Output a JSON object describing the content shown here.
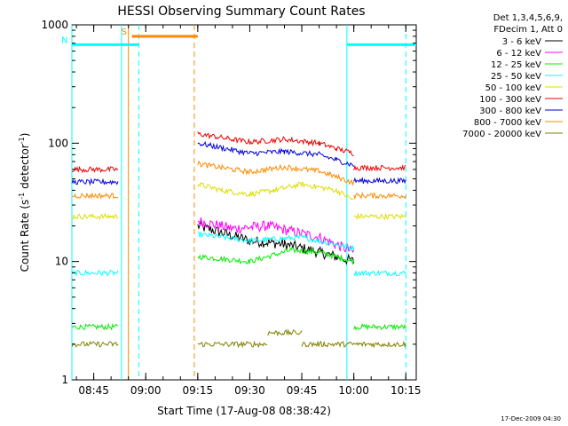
{
  "chart_data": {
    "type": "line",
    "title": "HESSI Observing Summary Count Rates",
    "xlabel": "Start Time (17-Aug-08 08:38:42)",
    "ylabel_main": "Count Rate (s",
    "ylabel_sup1": "-1",
    "ylabel_mid": " detector",
    "ylabel_sup2": "-1",
    "ylabel_end": ")",
    "yscale": "log",
    "xlim": [
      "08:38:42",
      "10:18:00"
    ],
    "ylim": [
      1,
      1000
    ],
    "x_ticks": [
      "08:45",
      "09:00",
      "09:15",
      "09:30",
      "09:45",
      "10:00",
      "10:15"
    ],
    "y_ticks": [
      "1",
      "10",
      "100",
      "1000"
    ],
    "legend_header": [
      "Det 1,3,4,5,6,9,",
      "FDecim 1, Att 0"
    ],
    "legend_placement": "right, outside plot",
    "series": [
      {
        "name": "3 - 6 keV",
        "color": "#000000",
        "segments": [
          {
            "x": [
              "09:15",
              "09:30",
              "09:40",
              "09:50",
              "10:00"
            ],
            "y": [
              20,
              15,
              14,
              12,
              10
            ]
          }
        ]
      },
      {
        "name": "6 - 12 keV",
        "color": "#ff00ff",
        "segments": [
          {
            "x": [
              "09:15",
              "09:25",
              "09:35",
              "09:50",
              "10:00"
            ],
            "y": [
              22,
              19,
              20,
              16,
              12
            ]
          }
        ]
      },
      {
        "name": "12 - 25 keV",
        "color": "#00ee00",
        "segments": [
          {
            "x": [
              "08:38:42",
              "08:52"
            ],
            "y": [
              2.8,
              2.8
            ]
          },
          {
            "x": [
              "09:15",
              "09:30",
              "09:42",
              "09:50",
              "10:00"
            ],
            "y": [
              11,
              10,
              12.5,
              12,
              10
            ]
          },
          {
            "x": [
              "10:00",
              "10:15"
            ],
            "y": [
              2.8,
              2.8
            ]
          }
        ]
      },
      {
        "name": "25 - 50 keV",
        "color": "#00ffff",
        "segments": [
          {
            "x": [
              "08:38:42",
              "08:52"
            ],
            "y": [
              8,
              8
            ]
          },
          {
            "x": [
              "09:15",
              "09:30",
              "09:45",
              "10:00"
            ],
            "y": [
              17,
              15,
              16,
              13
            ]
          },
          {
            "x": [
              "10:00",
              "10:15"
            ],
            "y": [
              8,
              8
            ]
          }
        ]
      },
      {
        "name": "50 - 100 keV",
        "color": "#dddd00",
        "segments": [
          {
            "x": [
              "08:38:42",
              "08:52"
            ],
            "y": [
              24,
              24
            ]
          },
          {
            "x": [
              "09:15",
              "09:22",
              "09:30",
              "09:37",
              "09:45",
              "09:55",
              "10:00"
            ],
            "y": [
              45,
              40,
              37,
              40,
              45,
              40,
              33
            ]
          },
          {
            "x": [
              "10:00",
              "10:15"
            ],
            "y": [
              24,
              24
            ]
          }
        ]
      },
      {
        "name": "100 - 300 keV",
        "color": "#ee0000",
        "segments": [
          {
            "x": [
              "08:38:42",
              "08:52"
            ],
            "y": [
              60,
              60
            ]
          },
          {
            "x": [
              "09:15",
              "09:30",
              "09:40",
              "09:50",
              "09:55",
              "10:00"
            ],
            "y": [
              120,
              102,
              108,
              100,
              90,
              82
            ]
          },
          {
            "x": [
              "10:00",
              "10:15"
            ],
            "y": [
              62,
              62
            ]
          }
        ]
      },
      {
        "name": "300 - 800 keV",
        "color": "#0000dd",
        "segments": [
          {
            "x": [
              "08:38:42",
              "08:52"
            ],
            "y": [
              47,
              47
            ]
          },
          {
            "x": [
              "09:15",
              "09:30",
              "09:40",
              "09:50",
              "09:55",
              "10:00"
            ],
            "y": [
              100,
              82,
              85,
              80,
              72,
              65
            ]
          },
          {
            "x": [
              "10:00",
              "10:15"
            ],
            "y": [
              48,
              48
            ]
          }
        ]
      },
      {
        "name": "800 - 7000 keV",
        "color": "#ff8800",
        "segments": [
          {
            "x": [
              "08:38:42",
              "08:52"
            ],
            "y": [
              36,
              36
            ]
          },
          {
            "x": [
              "09:15",
              "09:30",
              "09:40",
              "09:50",
              "09:55",
              "10:00"
            ],
            "y": [
              67,
              57,
              63,
              58,
              52,
              46
            ]
          },
          {
            "x": [
              "10:00",
              "10:15"
            ],
            "y": [
              36,
              36
            ]
          }
        ]
      },
      {
        "name": "7000 - 20000 keV",
        "color": "#808000",
        "segments": [
          {
            "x": [
              "08:38:42",
              "08:52"
            ],
            "y": [
              2,
              2
            ]
          },
          {
            "x": [
              "09:15",
              "09:35"
            ],
            "y": [
              2,
              2
            ]
          },
          {
            "x": [
              "09:35",
              "09:45"
            ],
            "y": [
              2.5,
              2.5
            ]
          },
          {
            "x": [
              "09:45",
              "10:15"
            ],
            "y": [
              2,
              2
            ]
          }
        ]
      }
    ],
    "flag_bars": [
      {
        "label": "S",
        "color": "#ff8800",
        "x": [
          "08:56",
          "09:15"
        ],
        "y": 800
      },
      {
        "label": "N",
        "color": "#00ffff",
        "x": [
          "08:38:42",
          "08:58"
        ],
        "y": 680
      },
      {
        "label": "",
        "color": "#00ffff",
        "x": [
          "09:58",
          "10:18"
        ],
        "y": 680
      }
    ],
    "markers": [
      {
        "color": "#00ffff",
        "style": "solid",
        "x": "08:38:42"
      },
      {
        "color": "#00ffff",
        "style": "solid",
        "x": "08:53"
      },
      {
        "color": "#ff8800",
        "style": "solid",
        "x": "08:55"
      },
      {
        "color": "#00ffff",
        "style": "dashed",
        "x": "08:58"
      },
      {
        "color": "#ff8800",
        "style": "dashed",
        "x": "09:14"
      },
      {
        "color": "#00ffff",
        "style": "solid",
        "x": "09:58"
      },
      {
        "color": "#00ffff",
        "style": "dashed",
        "x": "10:15"
      }
    ]
  },
  "footer_date": "17-Dec-2009 04:30"
}
